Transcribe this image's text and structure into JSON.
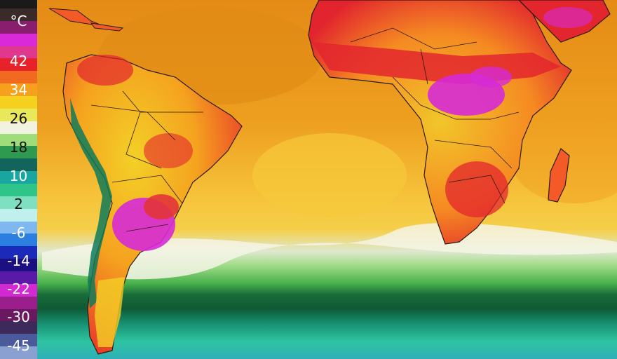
{
  "legend": {
    "unit": "°C",
    "labels": [
      "42",
      "34",
      "26",
      "18",
      "10",
      "2",
      "-6",
      "-14",
      "-22",
      "-30",
      "-45"
    ],
    "colors": [
      "#3a2a2a",
      "#8a1e6e",
      "#d82ad8",
      "#e0388e",
      "#e8222a",
      "#f06a20",
      "#f7a01e",
      "#f4d11f",
      "#e8e85a",
      "#f2f2e0",
      "#9fdd7a",
      "#2e9a50",
      "#11655a",
      "#1aa6a0",
      "#2ec48a",
      "#7ee0c0",
      "#bff0ee",
      "#7fb8ee",
      "#2a7fe0",
      "#1b2ab8",
      "#1b1080",
      "#5a1aa8",
      "#d22ad2",
      "#9a1f8c",
      "#6a1860",
      "#3c2a5a",
      "#4a5a9a",
      "#8aa0d0"
    ]
  },
  "map": {
    "ocean_tropical": "#f4b622",
    "ocean_warm": "#e99b1c",
    "ocean_mid": "#eec030",
    "cold_band_colors": [
      "#f2f2cf",
      "#b8e8a8",
      "#7cd266",
      "#3fae3f",
      "#1f7a3f",
      "#0f5a36",
      "#1aa67d",
      "#2ec3a0",
      "#34c6c2",
      "#2aa6c6"
    ],
    "land_hot": "#e3262e",
    "land_warm": "#f25a28",
    "land_yellow": "#f3cf25",
    "land_extreme": "#d82bd8",
    "andes": "#0f7a58",
    "border": "#2a1a10"
  }
}
